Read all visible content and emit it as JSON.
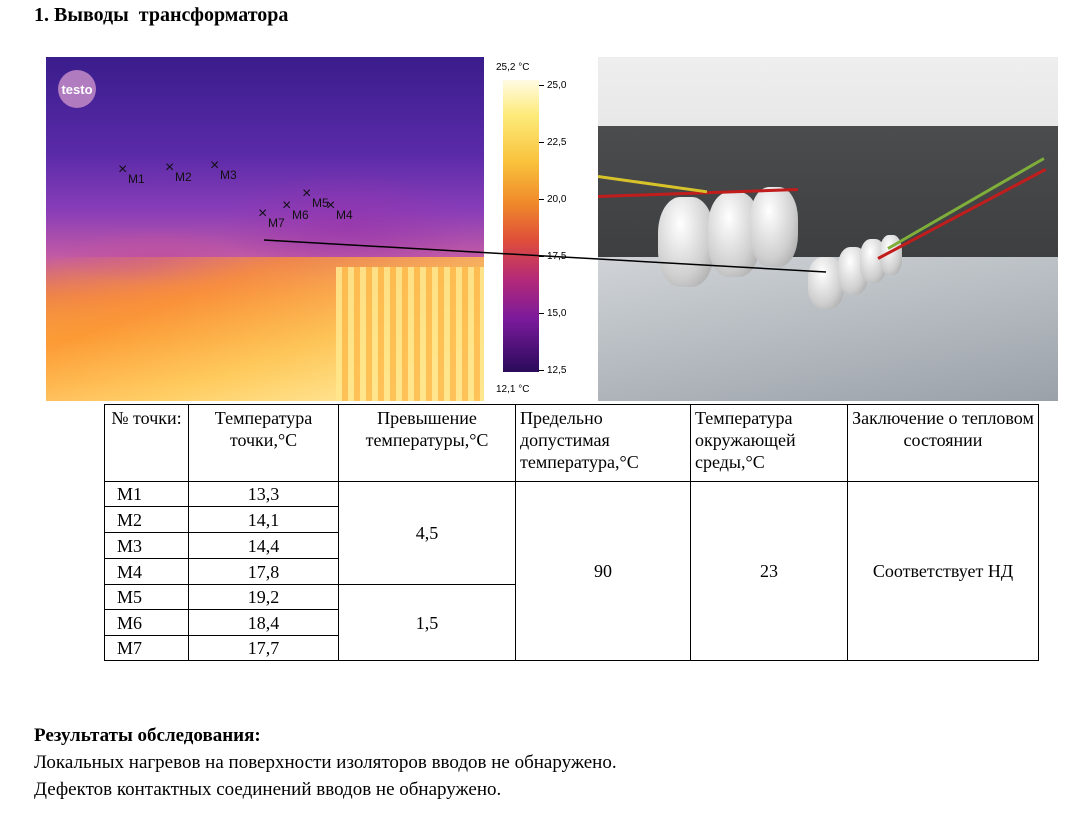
{
  "heading": "1. Выводы  трансформатора",
  "thermogram": {
    "logo_text": "testo",
    "markers": [
      "M1",
      "M2",
      "M3",
      "M4",
      "M5",
      "M6",
      "M7"
    ],
    "scale": {
      "max_label": "25,2 °C",
      "min_label": "12,1 °C",
      "ticks": [
        "25,0",
        "22,5",
        "20,0",
        "17,5",
        "15,0",
        "12,5"
      ]
    }
  },
  "table": {
    "headers": [
      "№ точки:",
      "Температура точки,°C",
      "Превышение температуры,°C",
      "Предельно допустимая температура,°C",
      "Температура окружающей среды,°C",
      "Заключение о тепловом состоянии"
    ],
    "rows": [
      {
        "point": "M1",
        "temp": "13,3"
      },
      {
        "point": "M2",
        "temp": "14,1"
      },
      {
        "point": "M3",
        "temp": "14,4"
      },
      {
        "point": "M4",
        "temp": "17,8"
      },
      {
        "point": "M5",
        "temp": "19,2"
      },
      {
        "point": "M6",
        "temp": "18,4"
      },
      {
        "point": "M7",
        "temp": "17,7"
      }
    ],
    "excess_group1": "4,5",
    "excess_group2": "1,5",
    "max_allowed": "90",
    "ambient": "23",
    "conclusion": "Соответствует НД"
  },
  "results": {
    "title": "Результаты обследования:",
    "lines": [
      "Локальных нагревов на поверхности изоляторов вводов не обнаружено.",
      "Дефектов контактных соединений вводов не обнаружено."
    ]
  }
}
